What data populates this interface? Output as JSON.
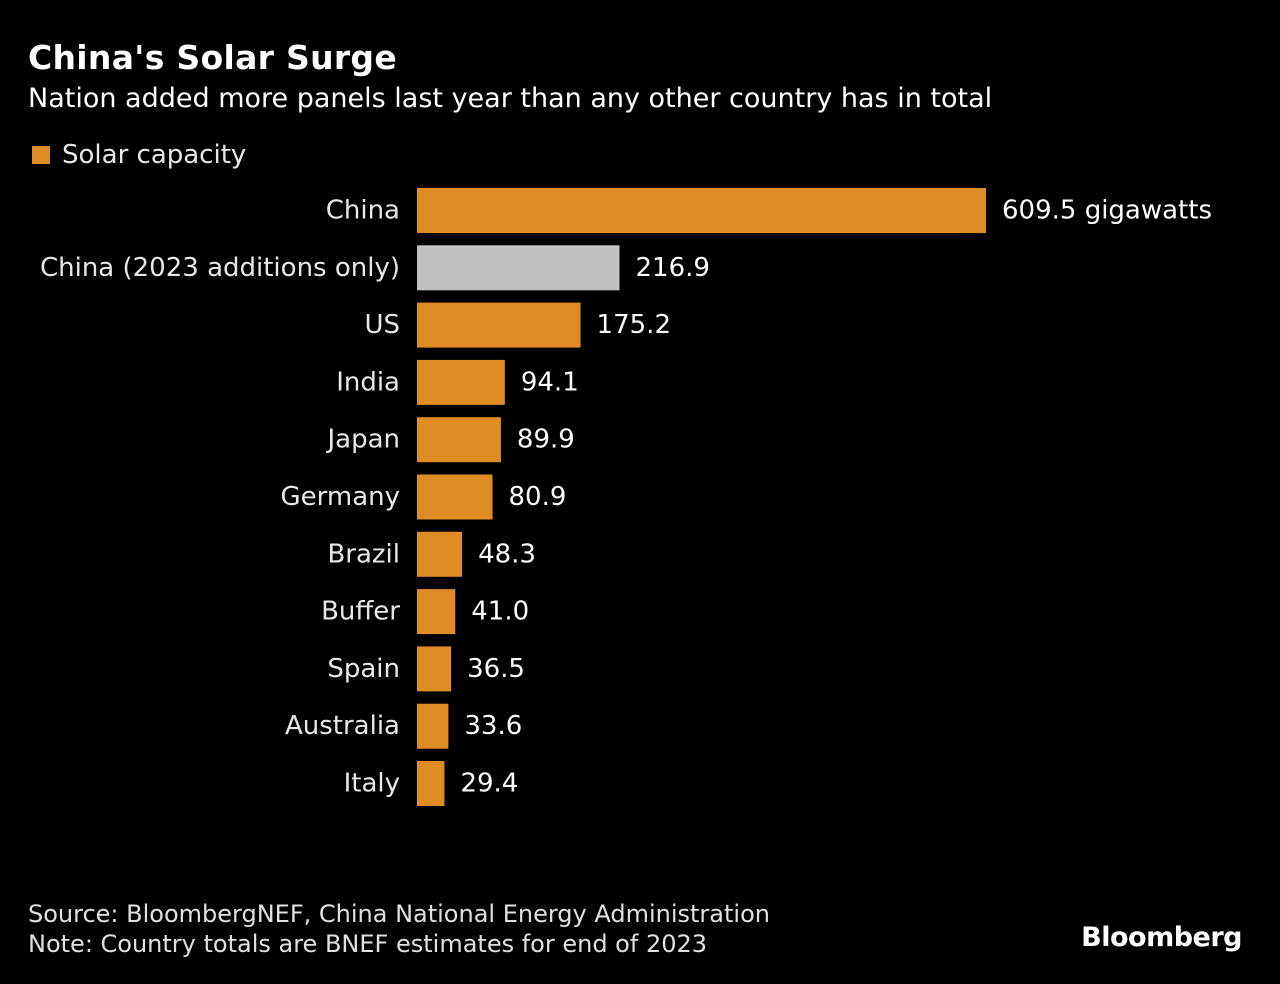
{
  "header": {
    "title": "China's Solar Surge",
    "subtitle": "Nation added more panels last year than any other country has in total"
  },
  "legend": {
    "label": "Solar capacity",
    "color": "#e08c25"
  },
  "colors": {
    "background": "#000000",
    "bar_primary": "#e08c25",
    "bar_highlight": "#c2c2c2",
    "text": "#ffffff"
  },
  "chart_data": {
    "type": "bar",
    "orientation": "horizontal",
    "categories": [
      "China",
      "China (2023 additions only)",
      "US",
      "India",
      "Japan",
      "Germany",
      "Brazil",
      "Buffer",
      "Spain",
      "Australia",
      "Italy"
    ],
    "values": [
      609.5,
      216.9,
      175.2,
      94.1,
      89.9,
      80.9,
      48.3,
      41.0,
      36.5,
      33.6,
      29.4
    ],
    "value_labels": [
      "609.5 gigawatts",
      "216.9",
      "175.2",
      "94.1",
      "89.9",
      "80.9",
      "48.3",
      "41.0",
      "36.5",
      "33.6",
      "29.4"
    ],
    "highlight_index": 1,
    "series": [
      {
        "name": "Solar capacity",
        "values": [
          609.5,
          216.9,
          175.2,
          94.1,
          89.9,
          80.9,
          48.3,
          41.0,
          36.5,
          33.6,
          29.4
        ]
      }
    ],
    "title": "China's Solar Surge",
    "subtitle": "Nation added more panels last year than any other country has in total",
    "xlabel": "",
    "ylabel": "",
    "xlim": [
      0,
      609.5
    ],
    "grid": false,
    "legend_position": "top-left"
  },
  "footer": {
    "source": "Source: BloombergNEF, China National Energy Administration",
    "note": "Note: Country totals are BNEF estimates for end of 2023",
    "brand": "Bloomberg"
  }
}
